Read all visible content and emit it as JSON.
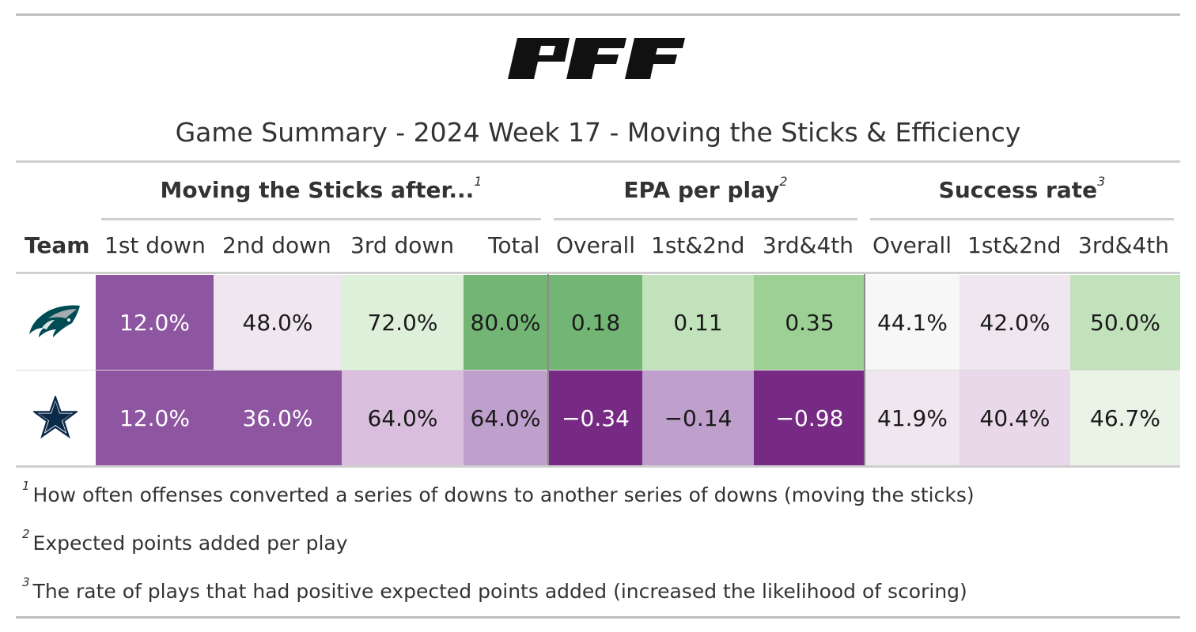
{
  "brand": {
    "logo_text": "PFF"
  },
  "title": "Game Summary - 2024 Week 17 - Moving the Sticks & Efficiency",
  "groups": [
    {
      "label": "Moving the Sticks after...",
      "note": "1"
    },
    {
      "label": "EPA per play",
      "note": "2"
    },
    {
      "label": "Success rate",
      "note": "3"
    }
  ],
  "columns": [
    "Team",
    "1st down",
    "2nd down",
    "3rd down",
    "Total",
    "Overall",
    "1st&2nd",
    "3rd&4th",
    "Overall",
    "1st&2nd",
    "3rd&4th"
  ],
  "rows": [
    {
      "team_icon": "eagles-logo-icon",
      "cells": [
        {
          "value": "12.0%",
          "bg": "#8e55a0",
          "light": true
        },
        {
          "value": "48.0%",
          "bg": "#efe6f0",
          "light": false
        },
        {
          "value": "72.0%",
          "bg": "#def0da",
          "light": false
        },
        {
          "value": "80.0%",
          "bg": "#73b574",
          "light": false
        },
        {
          "value": "0.18",
          "bg": "#73b574",
          "light": false
        },
        {
          "value": "0.11",
          "bg": "#c2e2bb",
          "light": false
        },
        {
          "value": "0.35",
          "bg": "#9cd094",
          "light": false
        },
        {
          "value": "44.1%",
          "bg": "#f7f7f7",
          "light": false
        },
        {
          "value": "42.0%",
          "bg": "#efe6f0",
          "light": false
        },
        {
          "value": "50.0%",
          "bg": "#c2e2bb",
          "light": false
        }
      ]
    },
    {
      "team_icon": "cowboys-star-icon",
      "cells": [
        {
          "value": "12.0%",
          "bg": "#8e55a0",
          "light": true
        },
        {
          "value": "36.0%",
          "bg": "#8e55a0",
          "light": true
        },
        {
          "value": "64.0%",
          "bg": "#d9bfdd",
          "light": false
        },
        {
          "value": "64.0%",
          "bg": "#bf9fcc",
          "light": false
        },
        {
          "value": "−0.34",
          "bg": "#762a83",
          "light": true
        },
        {
          "value": "−0.14",
          "bg": "#bf9fcc",
          "light": false
        },
        {
          "value": "−0.98",
          "bg": "#762a83",
          "light": true
        },
        {
          "value": "41.9%",
          "bg": "#efe6f0",
          "light": false
        },
        {
          "value": "40.4%",
          "bg": "#e9d8ea",
          "light": false
        },
        {
          "value": "46.7%",
          "bg": "#eaf4e6",
          "light": false
        }
      ]
    }
  ],
  "footnotes": [
    {
      "mark": "1",
      "text": "How often offenses converted a series of downs to another series of downs (moving the sticks)"
    },
    {
      "mark": "2",
      "text": "Expected points added per play"
    },
    {
      "mark": "3",
      "text": "The rate of plays that had positive expected points added (increased the likelihood of scoring)"
    }
  ]
}
